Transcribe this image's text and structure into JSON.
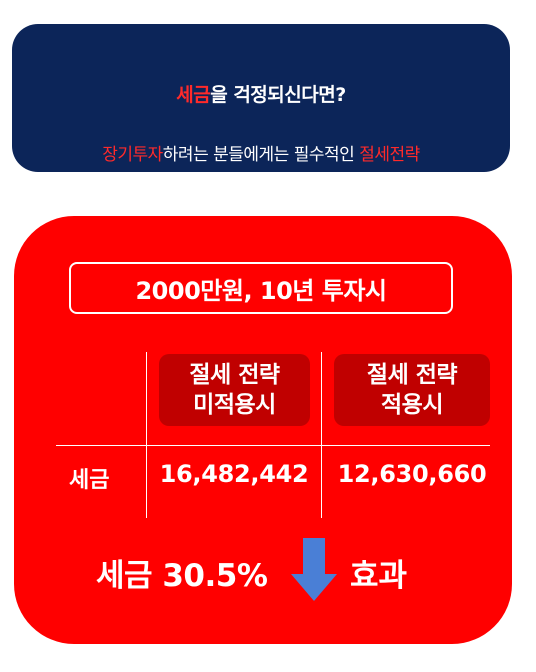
{
  "banner": {
    "line1_accent": "세금",
    "line1_rest": "을 걱정되신다면?",
    "line2_accent1": "장기투자",
    "line2_mid": "하려는 분들에게는 필수적인 ",
    "line2_accent2": "절세전략"
  },
  "card": {
    "title": "2000만원, 10년 투자시",
    "columns": [
      {
        "line1": "절세 전략",
        "line2": "미적용시"
      },
      {
        "line1": "절세 전략",
        "line2": "적용시"
      }
    ],
    "row_label": "세금",
    "values": [
      "16,482,442",
      "12,630,660"
    ],
    "summary_left": "세금 30.5%",
    "summary_right": "효과"
  },
  "colors": {
    "navy": "#0c2559",
    "red": "#ff0000",
    "dark_red": "#c00000",
    "accent_red": "#ff2a2a",
    "arrow_blue": "#4a7fd6"
  },
  "icons": {
    "arrow": "arrow-down-icon"
  }
}
